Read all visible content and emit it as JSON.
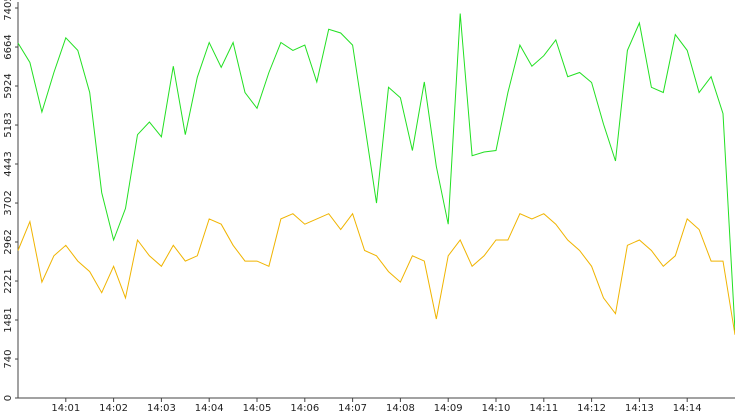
{
  "chart_data": {
    "type": "line",
    "x": [
      840,
      840.25,
      840.5,
      840.75,
      841,
      841.25,
      841.5,
      841.75,
      842,
      842.25,
      842.5,
      842.75,
      843,
      843.25,
      843.5,
      843.75,
      844,
      844.25,
      844.5,
      844.75,
      845,
      845.25,
      845.5,
      845.75,
      846,
      846.25,
      846.5,
      846.75,
      847,
      847.25,
      847.5,
      847.75,
      848,
      848.25,
      848.5,
      848.75,
      849,
      849.25,
      849.5,
      849.75,
      850,
      850.25,
      850.5,
      850.75,
      851,
      851.25,
      851.5,
      851.75,
      852,
      852.25,
      852.5,
      852.75,
      853,
      853.25,
      853.5,
      853.75,
      854,
      854.25,
      854.5,
      854.75,
      855
    ],
    "series": [
      {
        "color": "#22e022",
        "values": [
          6740,
          6370,
          5430,
          6180,
          6840,
          6600,
          5800,
          3900,
          3000,
          3600,
          5000,
          5240,
          4960,
          6300,
          5000,
          6090,
          6750,
          6280,
          6750,
          5800,
          5500,
          6180,
          6750,
          6600,
          6700,
          6000,
          7000,
          6930,
          6700,
          5200,
          3700,
          5900,
          5700,
          4700,
          6000,
          4400,
          3300,
          7300,
          4600,
          4670,
          4700,
          5800,
          6700,
          6300,
          6500,
          6800,
          6100,
          6180,
          5990,
          5200,
          4500,
          6600,
          7120,
          5900,
          5800,
          6900,
          6600,
          5800,
          6100,
          5400,
          1280
        ]
      },
      {
        "color": "#f0b400",
        "values": [
          2800,
          3350,
          2200,
          2700,
          2900,
          2600,
          2400,
          2000,
          2500,
          1900,
          3000,
          2700,
          2500,
          2900,
          2600,
          2700,
          3400,
          3300,
          2900,
          2600,
          2600,
          2500,
          3400,
          3500,
          3300,
          3400,
          3500,
          3200,
          3500,
          2800,
          2700,
          2400,
          2200,
          2700,
          2600,
          1500,
          2700,
          3000,
          2500,
          2700,
          3000,
          3000,
          3500,
          3400,
          3500,
          3300,
          3000,
          2800,
          2500,
          1900,
          1600,
          2900,
          3000,
          2800,
          2500,
          2700,
          3400,
          3200,
          2600,
          2600,
          1200
        ]
      }
    ],
    "xlim": [
      840,
      855
    ],
    "xticks": [
      {
        "value": 841,
        "label": "14:01"
      },
      {
        "value": 842,
        "label": "14:02"
      },
      {
        "value": 843,
        "label": "14:03"
      },
      {
        "value": 844,
        "label": "14:04"
      },
      {
        "value": 845,
        "label": "14:05"
      },
      {
        "value": 846,
        "label": "14:06"
      },
      {
        "value": 847,
        "label": "14:07"
      },
      {
        "value": 848,
        "label": "14:08"
      },
      {
        "value": 849,
        "label": "14:09"
      },
      {
        "value": 850,
        "label": "14:10"
      },
      {
        "value": 851,
        "label": "14:11"
      },
      {
        "value": 852,
        "label": "14:12"
      },
      {
        "value": 853,
        "label": "14:13"
      },
      {
        "value": 854,
        "label": "14:14"
      }
    ],
    "ylim": [
      0,
      7405
    ],
    "yticks": [
      0,
      740,
      1481,
      2221,
      2962,
      3702,
      4443,
      5183,
      5924,
      6664,
      7405
    ]
  }
}
